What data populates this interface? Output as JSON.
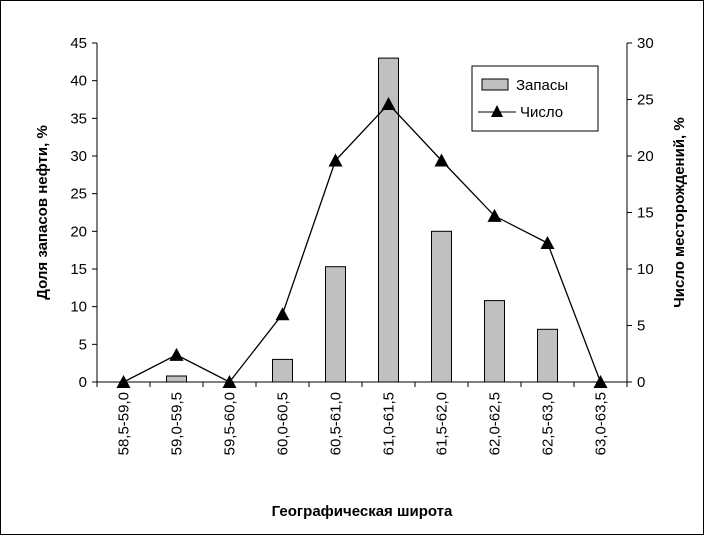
{
  "chart_data": {
    "type": "bar",
    "categories": [
      "58,5-59,0",
      "59,0-59,5",
      "59,5-60,0",
      "60,0-60,5",
      "60,5-61,0",
      "61,0-61,5",
      "61,5-62,0",
      "62,0-62,5",
      "62,5-63,0",
      "63,0-63,5"
    ],
    "series": [
      {
        "name": "Запасы",
        "type": "bar",
        "axis": "left",
        "color": "#c0c0c0",
        "values": [
          0,
          0.8,
          0,
          3,
          15.3,
          43,
          20,
          10.8,
          7,
          0
        ]
      },
      {
        "name": "Число",
        "type": "line",
        "axis": "right",
        "color": "#000000",
        "marker": "triangle",
        "values": [
          0,
          2.4,
          0,
          6,
          19.6,
          24.6,
          19.6,
          14.7,
          12.3,
          0
        ]
      }
    ],
    "xlabel": "Географическая широта",
    "ylabel": "Доля запасов нефти, %",
    "y2label": "Число месторождений, %",
    "ylim": [
      0,
      45
    ],
    "y2lim": [
      0,
      30
    ],
    "yticks": [
      "0",
      "5",
      "10",
      "15",
      "20",
      "25",
      "30",
      "35",
      "40",
      "45"
    ],
    "y2ticks": [
      "0",
      "5",
      "10",
      "15",
      "20",
      "25",
      "30"
    ],
    "grid": false,
    "legend": "top-right"
  }
}
